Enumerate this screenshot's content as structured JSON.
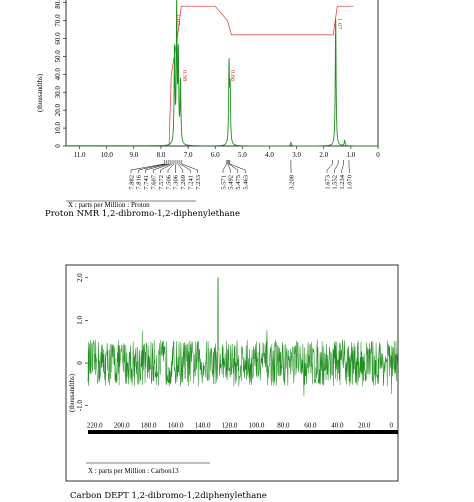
{
  "charts": [
    {
      "type": "line",
      "spectrum": "proton",
      "ylabel": "(thousandths)",
      "y_ticks": [
        "0",
        "10.0",
        "20.0",
        "30.0",
        "40.0",
        "50.0",
        "60.0",
        "70.0",
        "80.0"
      ],
      "x_ticks": [
        "11.0",
        "10.0",
        "9.0",
        "8.0",
        "7.0",
        "6.0",
        "5.0",
        "4.0",
        "3.0",
        "2.0",
        "1.0",
        "0"
      ],
      "xlim": [
        11.5,
        0
      ],
      "ylim": [
        0,
        82
      ],
      "integrals": [
        "1.07",
        "0.98",
        "0.66",
        "1.07"
      ],
      "peak_labels": [
        "7.882",
        "7.816",
        "7.741",
        "7.607",
        "7.572",
        "7.506",
        "7.306",
        "7.269",
        "7.241",
        "7.233",
        "5.571",
        "5.492",
        "5.475",
        "5.463",
        "3.208",
        "1.673",
        "1.552",
        "1.234",
        "1.070"
      ],
      "xaxis_title": "X : parts per Million : Proton",
      "caption": "Proton NMR 1,2-dibromo-1,2-diphenylethane",
      "color": "#1f8f1f",
      "integral_color": "#e03030",
      "peaks": [
        {
          "x": 7.5,
          "h": 52
        },
        {
          "x": 7.42,
          "h": 76
        },
        {
          "x": 7.36,
          "h": 48
        },
        {
          "x": 7.28,
          "h": 34
        },
        {
          "x": 5.49,
          "h": 44
        },
        {
          "x": 5.45,
          "h": 30
        },
        {
          "x": 3.21,
          "h": 2
        },
        {
          "x": 1.56,
          "h": 71
        },
        {
          "x": 1.23,
          "h": 3
        }
      ]
    },
    {
      "type": "line",
      "spectrum": "carbon-dept",
      "ylabel": "(thousandths)",
      "y_ticks": [
        "-1.0",
        "0",
        "1.0",
        "2.0"
      ],
      "x_ticks": [
        "220.0",
        "200.0",
        "180.0",
        "160.0",
        "140.0",
        "120.0",
        "100.0",
        "80.0",
        "60.0",
        "40.0",
        "20.0",
        "0"
      ],
      "xlim": [
        225,
        -5
      ],
      "ylim": [
        -1.5,
        2.3
      ],
      "xaxis_title": "X : parts per Million : Carbon13",
      "caption": "Carbon DEPT 1,2-dibromo-1,2diphenylethane",
      "color": "#1f8f1f",
      "noise_amplitude": 0.55,
      "peaks": [
        {
          "x": 128.5,
          "h": 2.0
        }
      ]
    }
  ]
}
